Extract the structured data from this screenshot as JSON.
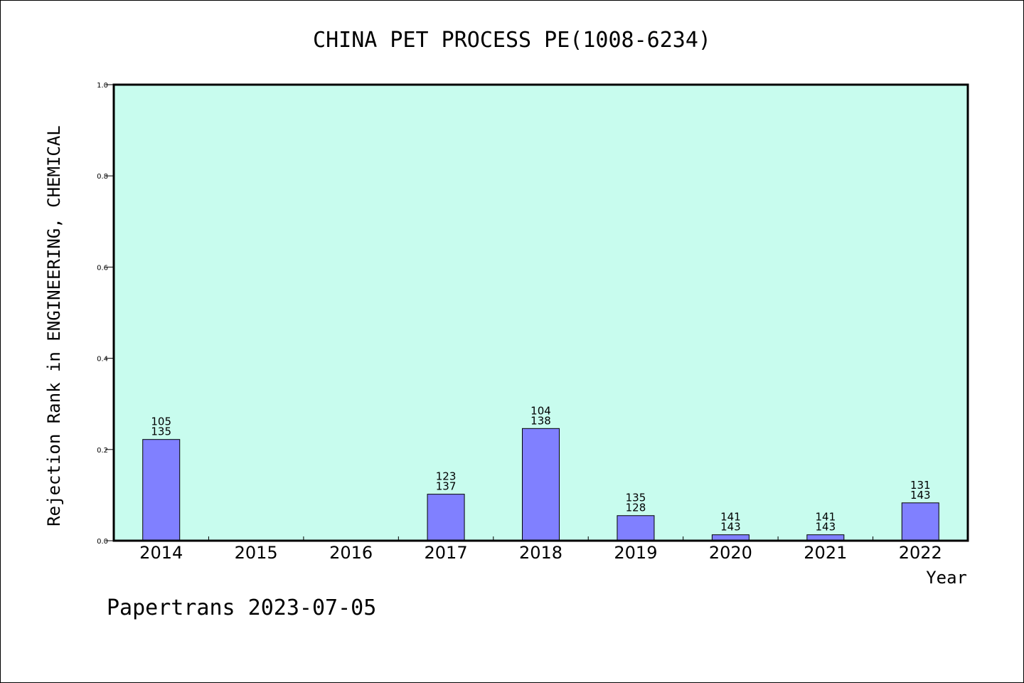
{
  "chart_data": {
    "type": "bar",
    "title": "CHINA PET PROCESS PE(1008-6234)",
    "xlabel": "Year",
    "ylabel": "Rejection Rank in ENGINEERING, CHEMICAL",
    "categories": [
      "2014",
      "2015",
      "2016",
      "2017",
      "2018",
      "2019",
      "2020",
      "2021",
      "2022"
    ],
    "values": [
      0.222,
      null,
      null,
      0.102,
      0.246,
      0.055,
      0.013,
      0.013,
      0.083
    ],
    "bar_labels": [
      [
        "105",
        "135"
      ],
      null,
      null,
      [
        "123",
        "137"
      ],
      [
        "104",
        "138"
      ],
      [
        "135",
        "128"
      ],
      [
        "141",
        "143"
      ],
      [
        "141",
        "143"
      ],
      [
        "131",
        "143"
      ]
    ],
    "ylim": [
      0,
      1.0
    ],
    "yticks": [
      "0.0",
      "0.2",
      "0.4",
      "0.6",
      "0.8",
      "1.0"
    ],
    "grid": false,
    "colors": {
      "plot_background": "#c8fcee",
      "bar_fill": "#8080ff",
      "bar_stroke": "#000000"
    }
  },
  "footer": "Papertrans 2023-07-05"
}
